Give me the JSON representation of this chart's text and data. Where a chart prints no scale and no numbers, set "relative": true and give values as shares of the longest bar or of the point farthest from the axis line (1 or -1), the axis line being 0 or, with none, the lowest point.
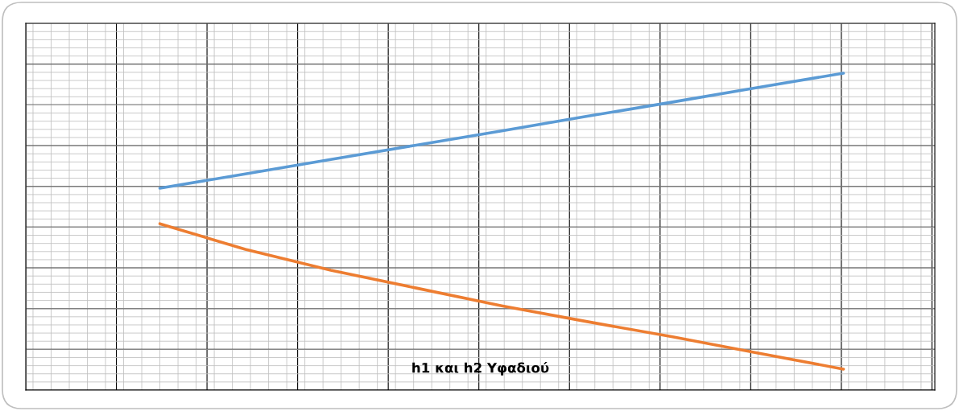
{
  "chart_data": {
    "type": "line",
    "title": "h1 και h2 Υφαδιού",
    "relative": true,
    "grid": true,
    "legend": false,
    "categories": [
      null,
      null,
      null,
      null,
      null,
      null,
      null,
      null,
      null
    ],
    "series": [
      {
        "color": "#5b9bd5",
        "values": [
          0.637,
          0.682,
          0.728,
          0.773,
          0.818,
          0.864,
          0.909,
          0.955,
          1.0
        ]
      },
      {
        "color": "#ed7d31",
        "values": [
          0.525,
          0.444,
          0.378,
          0.322,
          0.266,
          0.216,
          0.168,
          0.117,
          0.066
        ]
      }
    ]
  }
}
